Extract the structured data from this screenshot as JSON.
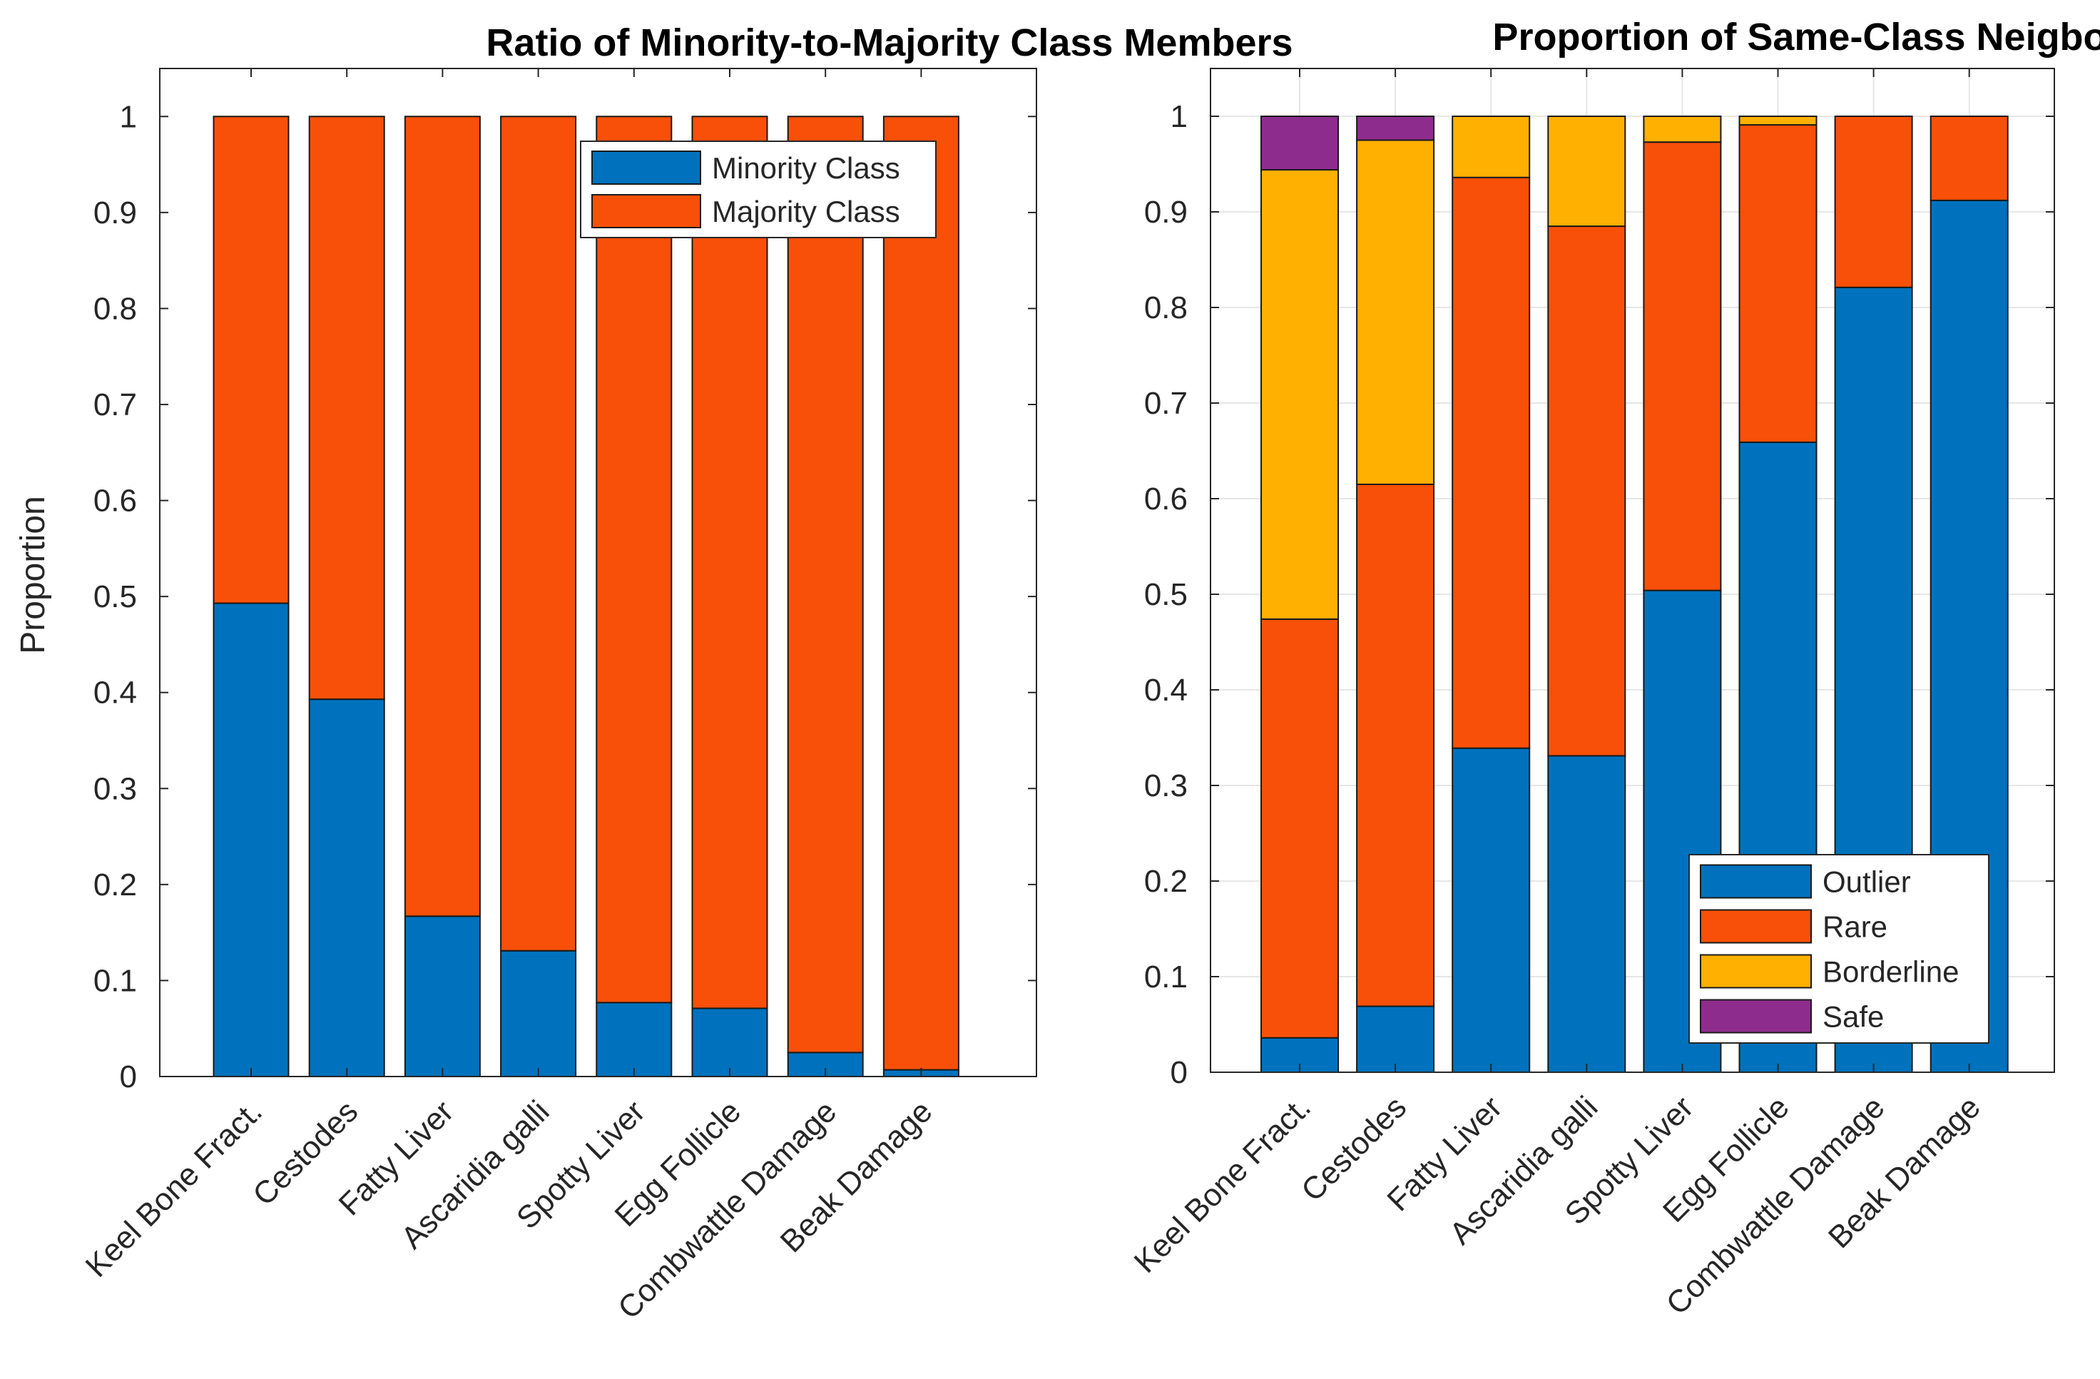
{
  "chart_data": [
    {
      "type": "bar",
      "stacked": true,
      "title": "Ratio of Minority-to-Majority Class Members",
      "xlabel": "",
      "ylabel": "Proportion",
      "ylim": [
        0,
        1.05
      ],
      "yticks": [
        0,
        0.1,
        0.2,
        0.3,
        0.4,
        0.5,
        0.6,
        0.7,
        0.8,
        0.9,
        1
      ],
      "ytick_labels": [
        "0",
        "0.1",
        "0.2",
        "0.3",
        "0.4",
        "0.5",
        "0.6",
        "0.7",
        "0.8",
        "0.9",
        "1"
      ],
      "categories": [
        "Keel Bone Fract.",
        "Cestodes",
        "Fatty Liver",
        "Ascaridia galli",
        "Spotty Liver",
        "Egg Follicle",
        "Combwattle Damage",
        "Beak Damage"
      ],
      "series": [
        {
          "name": "Minority Class",
          "color": "#0072BD",
          "values": [
            0.493,
            0.393,
            0.167,
            0.131,
            0.077,
            0.071,
            0.025,
            0.007
          ]
        },
        {
          "name": "Majority Class",
          "color": "#F85008",
          "values": [
            0.507,
            0.607,
            0.833,
            0.869,
            0.923,
            0.929,
            0.975,
            0.993
          ]
        }
      ],
      "legend_position": "top-right",
      "grid": false
    },
    {
      "type": "bar",
      "stacked": true,
      "title": "Proportion of Same-Class Neigbours",
      "xlabel": "",
      "ylabel": "",
      "ylim": [
        0,
        1.05
      ],
      "yticks": [
        0,
        0.1,
        0.2,
        0.3,
        0.4,
        0.5,
        0.6,
        0.7,
        0.8,
        0.9,
        1
      ],
      "ytick_labels": [
        "0",
        "0.1",
        "0.2",
        "0.3",
        "0.4",
        "0.5",
        "0.6",
        "0.7",
        "0.8",
        "0.9",
        "1"
      ],
      "categories": [
        "Keel Bone Fract.",
        "Cestodes",
        "Fatty Liver",
        "Ascaridia galli",
        "Spotty Liver",
        "Egg Follicle",
        "Combwattle Damage",
        "Beak Damage"
      ],
      "series": [
        {
          "name": "Outlier",
          "color": "#0072BD",
          "values": [
            0.036,
            0.069,
            0.339,
            0.331,
            0.504,
            0.659,
            0.821,
            0.912
          ]
        },
        {
          "name": "Rare",
          "color": "#F85008",
          "values": [
            0.438,
            0.546,
            0.597,
            0.554,
            0.469,
            0.332,
            0.179,
            0.088
          ]
        },
        {
          "name": "Borderline",
          "color": "#FFB000",
          "values": [
            0.47,
            0.36,
            0.064,
            0.115,
            0.027,
            0.009,
            0,
            0
          ]
        },
        {
          "name": "Safe",
          "color": "#8E2C8E",
          "values": [
            0.056,
            0.025,
            0,
            0,
            0,
            0,
            0,
            0
          ]
        }
      ],
      "legend_position": "bottom-right",
      "grid": true
    }
  ]
}
